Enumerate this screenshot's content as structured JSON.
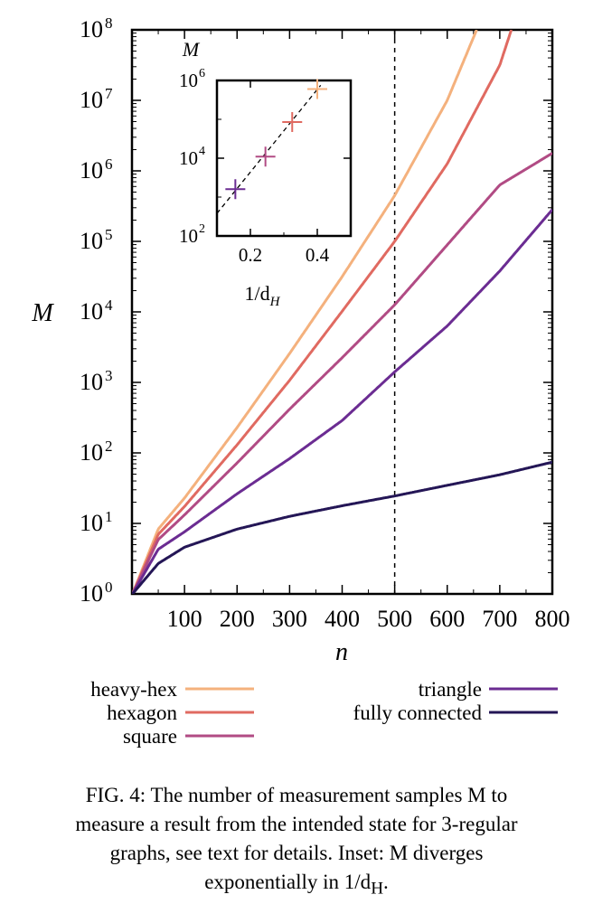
{
  "chart_data": [
    {
      "type": "line",
      "title": "",
      "xlabel": "n",
      "ylabel": "M",
      "xlim": [
        0,
        800
      ],
      "ylim": [
        1,
        100000000
      ],
      "yscale": "log",
      "x_ticks": [
        100,
        200,
        300,
        400,
        500,
        600,
        700,
        800
      ],
      "y_ticks": [
        {
          "base": "10",
          "exp": "0",
          "value": 1
        },
        {
          "base": "10",
          "exp": "1",
          "value": 10
        },
        {
          "base": "10",
          "exp": "2",
          "value": 100
        },
        {
          "base": "10",
          "exp": "3",
          "value": 1000
        },
        {
          "base": "10",
          "exp": "4",
          "value": 10000
        },
        {
          "base": "10",
          "exp": "5",
          "value": 100000
        },
        {
          "base": "10",
          "exp": "6",
          "value": 1000000
        },
        {
          "base": "10",
          "exp": "7",
          "value": 10000000
        },
        {
          "base": "10",
          "exp": "8",
          "value": 100000000
        }
      ],
      "vline_x": 500,
      "grid": false,
      "legend_position": "bottom",
      "series": [
        {
          "name": "heavy-hex",
          "color": "#f4b17d",
          "x": [
            1,
            50,
            100,
            200,
            300,
            400,
            500,
            600,
            656
          ],
          "y": [
            1,
            8.3,
            22.9,
            229,
            2570,
            31600,
            447000,
            10000000,
            100000000
          ]
        },
        {
          "name": "hexagon",
          "color": "#e06a61",
          "x": [
            1,
            50,
            100,
            200,
            300,
            400,
            500,
            600,
            700,
            722
          ],
          "y": [
            1,
            7.0,
            17.4,
            130,
            1070,
            10200,
            100000,
            1260000,
            31600000,
            100000000
          ]
        },
        {
          "name": "square",
          "color": "#b14b84",
          "x": [
            1,
            50,
            100,
            200,
            300,
            400,
            500,
            600,
            700,
            800
          ],
          "y": [
            1,
            5.9,
            13.2,
            72,
            417,
            2240,
            12600,
            89100,
            631000,
            1780000
          ]
        },
        {
          "name": "triangle",
          "color": "#6b2c92",
          "x": [
            1,
            50,
            100,
            200,
            300,
            400,
            500,
            600,
            700,
            800
          ],
          "y": [
            1,
            4.3,
            7.6,
            26.3,
            83,
            288,
            1410,
            6310,
            38000,
            282000
          ]
        },
        {
          "name": "fully connected",
          "color": "#241656",
          "x": [
            1,
            50,
            100,
            200,
            300,
            400,
            500,
            600,
            700,
            800
          ],
          "y": [
            1,
            2.7,
            4.6,
            8.3,
            12.6,
            17.8,
            24.5,
            34.7,
            49,
            74
          ]
        }
      ]
    },
    {
      "type": "scatter",
      "title": "",
      "xlabel": "1/d",
      "xlabel_sub": "H",
      "ylabel": "M",
      "xlim": [
        0.1,
        0.5
      ],
      "ylim": [
        100,
        1000000
      ],
      "yscale": "log",
      "x_ticks": [
        "0.2",
        "0.4"
      ],
      "y_ticks": [
        {
          "base": "10",
          "exp": "2",
          "value": 100
        },
        {
          "base": "10",
          "exp": "4",
          "value": 10000
        },
        {
          "base": "10",
          "exp": "6",
          "value": 1000000
        }
      ],
      "fit_line": {
        "x": [
          0.1,
          0.41
        ],
        "y": [
          380,
          750000
        ]
      },
      "points": [
        {
          "x": 0.155,
          "y": 1600,
          "color": "#6b2c92"
        },
        {
          "x": 0.245,
          "y": 11000,
          "color": "#b14b84"
        },
        {
          "x": 0.325,
          "y": 85000,
          "color": "#e06a61"
        },
        {
          "x": 0.4,
          "y": 600000,
          "color": "#f4b17d"
        }
      ]
    }
  ],
  "caption": {
    "line1": "FIG. 4: The number of measurement samples M to",
    "line2": "measure a result from the intended state for 3-regular",
    "line3": "graphs, see text for details. Inset: M diverges",
    "line4": "exponentially in 1/d",
    "line4_sub": "H",
    "line4_end": "."
  }
}
